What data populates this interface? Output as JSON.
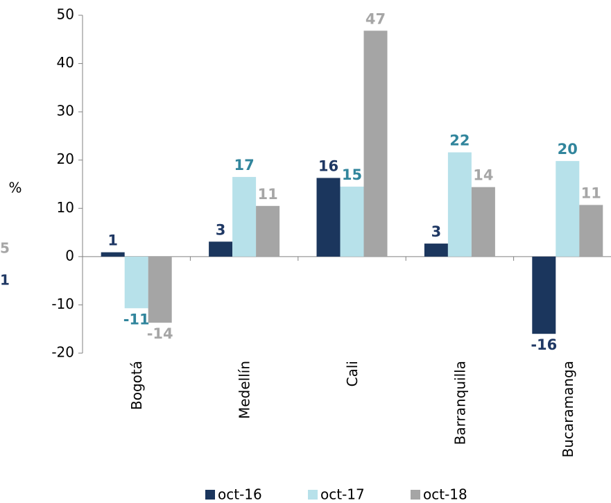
{
  "chart_data": {
    "type": "bar",
    "y_label": "%",
    "categories": [
      "Bogotá",
      "Medellín",
      "Cali",
      "Barranquilla",
      "Bucaramanga"
    ],
    "series": [
      {
        "name": "oct-16",
        "color": "#1b365d",
        "label_color": "#1f3864",
        "values": [
          0.9,
          3.1,
          16.3,
          2.7,
          -16.0
        ],
        "value_labels": [
          "1",
          "3",
          "16",
          "3",
          "-16"
        ]
      },
      {
        "name": "oct-17",
        "color": "#b7e1ea",
        "label_color": "#31859c",
        "values": [
          -10.7,
          16.5,
          14.5,
          21.6,
          19.8
        ],
        "value_labels": [
          "-11",
          "17",
          "15",
          "22",
          "20"
        ]
      },
      {
        "name": "oct-18",
        "color": "#a5a5a5",
        "label_color": "#a6a6a6",
        "values": [
          -13.7,
          10.5,
          46.8,
          14.4,
          10.7
        ],
        "value_labels": [
          "-14",
          "11",
          "47",
          "14",
          "11"
        ]
      }
    ],
    "ylim": [
      -20,
      50
    ],
    "yticks": [
      -20,
      -10,
      0,
      10,
      20,
      30,
      40,
      50
    ],
    "edge_labels": [
      {
        "text": "5",
        "color": "#a6a6a6"
      },
      {
        "text": "1",
        "color": "#1f3864"
      }
    ]
  }
}
